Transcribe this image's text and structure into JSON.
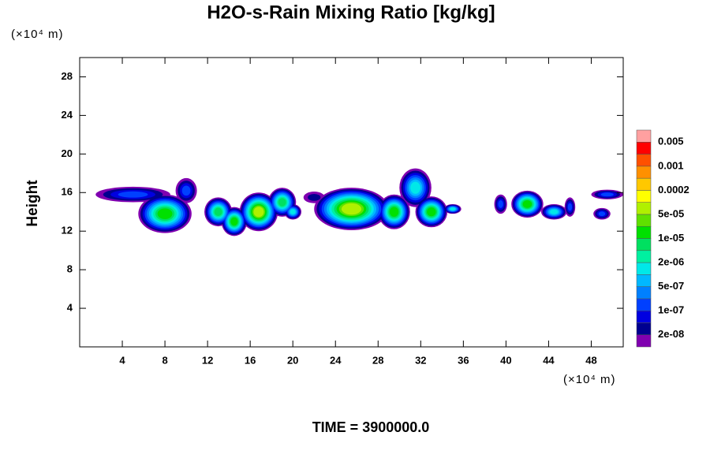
{
  "chart_data": {
    "type": "contour",
    "title": "H2O-s-Rain Mixing Ratio [kg/kg]",
    "ylabel": "Height",
    "ylabel_unit": "(×10⁴ m)",
    "xlabel_unit": "(×10⁴ m)",
    "footer": "TIME = 3900000.0",
    "xlim": [
      0,
      51
    ],
    "xticks": [
      4,
      8,
      12,
      16,
      20,
      24,
      28,
      32,
      36,
      40,
      44,
      48
    ],
    "ylim": [
      0,
      30
    ],
    "yticks": [
      4,
      8,
      12,
      16,
      20,
      24,
      28
    ],
    "colorbar": {
      "colors": [
        "#8000b0",
        "#000090",
        "#0000e0",
        "#0040ff",
        "#0080ff",
        "#00b8ff",
        "#00e8e8",
        "#00f0a0",
        "#00e060",
        "#00e000",
        "#60e000",
        "#b0f000",
        "#ffff00",
        "#ffc800",
        "#ff9000",
        "#ff5000",
        "#ff0000",
        "#ffa0a0"
      ],
      "ticks": [
        0.005,
        0.001,
        0.0002,
        {
          "value": 5e-05,
          "label": "5e-05"
        },
        {
          "value": 1e-05,
          "label": "1e-05"
        },
        {
          "value": 2e-06,
          "label": "2e-06"
        },
        {
          "value": 5e-07,
          "label": "5e-07"
        },
        {
          "value": 1e-07,
          "label": "1e-07"
        },
        {
          "value": 2e-08,
          "label": "2e-08"
        }
      ]
    },
    "cells": [
      {
        "x": 5,
        "y": 15.8,
        "rx": 3.5,
        "ry": 0.8,
        "peak": 1e-07
      },
      {
        "x": 8,
        "y": 13.8,
        "rx": 2.5,
        "ry": 2,
        "peak": 2e-05
      },
      {
        "x": 10,
        "y": 16.2,
        "rx": 1,
        "ry": 1.3,
        "peak": 1e-07
      },
      {
        "x": 13,
        "y": 14,
        "rx": 1.3,
        "ry": 1.5,
        "peak": 5e-06
      },
      {
        "x": 14.5,
        "y": 13,
        "rx": 1.2,
        "ry": 1.5,
        "peak": 1e-05
      },
      {
        "x": 16.8,
        "y": 14,
        "rx": 1.8,
        "ry": 2,
        "peak": 5e-05
      },
      {
        "x": 19,
        "y": 15,
        "rx": 1.3,
        "ry": 1.5,
        "peak": 5e-06
      },
      {
        "x": 20,
        "y": 14,
        "rx": 0.8,
        "ry": 0.8,
        "peak": 1e-06
      },
      {
        "x": 22,
        "y": 15.5,
        "rx": 1,
        "ry": 0.6,
        "peak": 2e-08
      },
      {
        "x": 25.5,
        "y": 14.3,
        "rx": 3.5,
        "ry": 2.2,
        "peak": 5e-05
      },
      {
        "x": 29.5,
        "y": 14,
        "rx": 1.5,
        "ry": 1.8,
        "peak": 2e-05
      },
      {
        "x": 31.5,
        "y": 16.5,
        "rx": 1.5,
        "ry": 2,
        "peak": 1e-06
      },
      {
        "x": 33,
        "y": 14,
        "rx": 1.5,
        "ry": 1.6,
        "peak": 1e-05
      },
      {
        "x": 35,
        "y": 14.3,
        "rx": 0.8,
        "ry": 0.5,
        "peak": 1e-06
      },
      {
        "x": 39.5,
        "y": 14.8,
        "rx": 0.6,
        "ry": 1,
        "peak": 1e-07
      },
      {
        "x": 42,
        "y": 14.8,
        "rx": 1.5,
        "ry": 1.4,
        "peak": 1e-05
      },
      {
        "x": 44.5,
        "y": 14,
        "rx": 1.2,
        "ry": 0.8,
        "peak": 1e-06
      },
      {
        "x": 46,
        "y": 14.5,
        "rx": 0.5,
        "ry": 1,
        "peak": 2e-07
      },
      {
        "x": 49.5,
        "y": 15.8,
        "rx": 1.5,
        "ry": 0.5,
        "peak": 2e-07
      },
      {
        "x": 49,
        "y": 13.8,
        "rx": 0.8,
        "ry": 0.6,
        "peak": 2e-07
      }
    ]
  }
}
